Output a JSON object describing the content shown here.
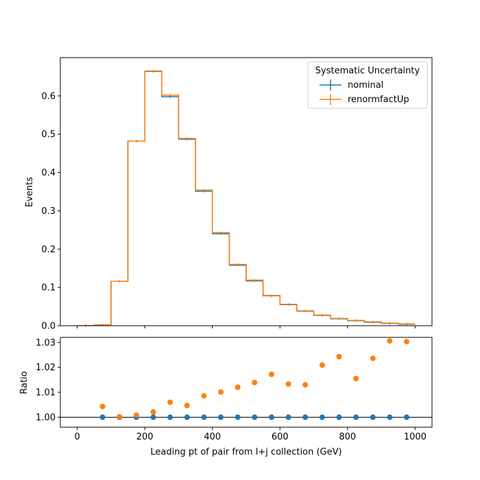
{
  "chart_data": [
    {
      "type": "line",
      "panel": "main",
      "ylabel": "Events",
      "xlim": [
        -50,
        1050
      ],
      "ylim": [
        0,
        0.7
      ],
      "x_bin_edges": [
        0,
        50,
        100,
        150,
        200,
        250,
        300,
        350,
        400,
        450,
        500,
        550,
        600,
        650,
        700,
        750,
        800,
        850,
        900,
        950,
        1000
      ],
      "x_ticks": [
        "0",
        "200",
        "400",
        "600",
        "800",
        "1000"
      ],
      "y_ticks": [
        "0.0",
        "0.1",
        "0.2",
        "0.3",
        "0.4",
        "0.5",
        "0.6"
      ],
      "grid": false,
      "legend": {
        "title": "Systematic Uncertainty",
        "placement": "top-right"
      },
      "series": [
        {
          "name": "nominal",
          "color": "#1f77b4",
          "values": [
            0.0005,
            0.002,
            0.116,
            0.482,
            0.664,
            0.598,
            0.487,
            0.351,
            0.24,
            0.158,
            0.117,
            0.078,
            0.055,
            0.038,
            0.027,
            0.018,
            0.013,
            0.009,
            0.006,
            0.004
          ]
        },
        {
          "name": "renormfactUp",
          "color": "#ff7f0e",
          "values": [
            0.0005,
            0.002,
            0.116,
            0.482,
            0.665,
            0.602,
            0.489,
            0.354,
            0.243,
            0.16,
            0.119,
            0.079,
            0.056,
            0.039,
            0.028,
            0.019,
            0.014,
            0.01,
            0.007,
            0.005
          ]
        }
      ]
    },
    {
      "type": "scatter",
      "panel": "ratio",
      "xlabel": "Leading pt of pair from l+j collection (GeV)",
      "ylabel": "Ratio",
      "xlim": [
        -50,
        1050
      ],
      "ylim": [
        0.996,
        1.032
      ],
      "x_ticks": [
        "0",
        "200",
        "400",
        "600",
        "800",
        "1000"
      ],
      "y_ticks": [
        "1.00",
        "1.01",
        "1.02",
        "1.03"
      ],
      "reference_line": 1.0,
      "x": [
        75,
        125,
        175,
        225,
        275,
        325,
        375,
        425,
        475,
        525,
        575,
        625,
        675,
        725,
        775,
        825,
        875,
        925,
        975
      ],
      "series": [
        {
          "name": "nominal",
          "color": "#1f77b4",
          "values": [
            1.0,
            1.0,
            1.0,
            1.0,
            1.0,
            1.0,
            1.0,
            1.0,
            1.0,
            1.0,
            1.0,
            1.0,
            1.0,
            1.0,
            1.0,
            1.0,
            1.0,
            1.0,
            1.0
          ]
        },
        {
          "name": "renormfactUp",
          "color": "#ff7f0e",
          "values": [
            1.0043,
            1.0002,
            1.0008,
            1.0021,
            1.006,
            1.0047,
            1.0086,
            1.0101,
            1.012,
            1.0139,
            1.0172,
            1.0133,
            1.013,
            1.0209,
            1.0243,
            1.0155,
            1.0236,
            1.0306,
            1.0303
          ]
        }
      ]
    }
  ]
}
